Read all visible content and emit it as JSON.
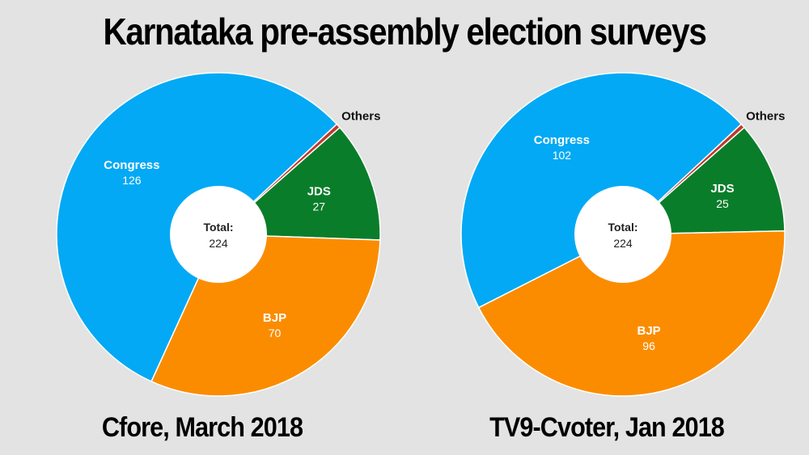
{
  "title": "Karnataka pre-assembly election surveys",
  "chart_data": [
    {
      "type": "pie",
      "caption": "Cfore, March 2018",
      "total_label": "Total:",
      "total_value": "224",
      "slices": [
        {
          "label": "Others",
          "value": 1,
          "color": "#c0392b",
          "label_position": "outside"
        },
        {
          "label": "JDS",
          "value": 27,
          "color": "#0a7d2a"
        },
        {
          "label": "BJP",
          "value": 70,
          "color": "#fb8c00"
        },
        {
          "label": "Congress",
          "value": 126,
          "color": "#03a9f4"
        }
      ]
    },
    {
      "type": "pie",
      "caption": "TV9-Cvoter, Jan 2018",
      "total_label": "Total:",
      "total_value": "224",
      "slices": [
        {
          "label": "Others",
          "value": 1,
          "color": "#c0392b",
          "label_position": "outside"
        },
        {
          "label": "JDS",
          "value": 25,
          "color": "#0a7d2a"
        },
        {
          "label": "BJP",
          "value": 96,
          "color": "#fb8c00"
        },
        {
          "label": "Congress",
          "value": 102,
          "color": "#03a9f4"
        }
      ]
    }
  ]
}
